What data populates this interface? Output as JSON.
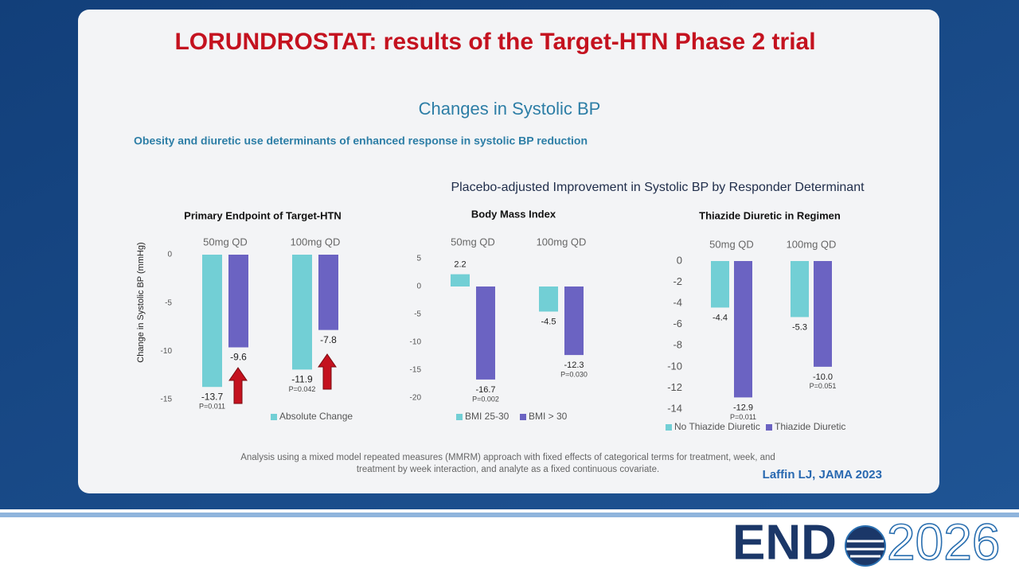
{
  "slide": {
    "title": "LORUNDROSTAT: results of the Target-HTN Phase 2 trial",
    "heading": "Changes in Systolic BP",
    "subtitle": "Obesity and diuretic use determinants of enhanced response in systolic BP reduction",
    "group_heading": "Placebo-adjusted Improvement in Systolic BP by Responder Determinant",
    "footnote": [
      "Analysis using a mixed model repeated measures (MMRM) approach with fixed effects of categorical terms for treatment, week, and",
      "treatment by week interaction, and analyte as a fixed continuous covariate."
    ],
    "citation": "Laffin LJ, JAMA 2023",
    "logo": {
      "brand": "END",
      "year": "2026"
    }
  },
  "chart_data": [
    {
      "type": "bar",
      "title": "Primary Endpoint of Target-HTN",
      "y_label": "Change in Systolic BP (mmHg)",
      "categories": [
        "50mg QD",
        "100mg QD"
      ],
      "series": [
        {
          "name": "Absolute Change",
          "color": "#72cfd5",
          "values": [
            -13.7,
            -11.9
          ],
          "p_values": [
            "P=0.011",
            "P=0.042"
          ]
        },
        {
          "color": "#6b63c2",
          "values": [
            -9.6,
            -7.8
          ]
        }
      ],
      "ylim": [
        -15,
        0
      ],
      "yticks": [
        0,
        -5,
        -10,
        -15
      ]
    },
    {
      "type": "bar",
      "title": "Body Mass Index",
      "categories": [
        "50mg QD",
        "100mg QD"
      ],
      "series": [
        {
          "name": "BMI 25-30",
          "color": "#72cfd5",
          "values": [
            2.2,
            -4.5
          ]
        },
        {
          "name": "BMI > 30",
          "color": "#6b63c2",
          "values": [
            -16.7,
            -12.3
          ],
          "p_values": [
            "P=0.002",
            "P=0.030"
          ]
        }
      ],
      "ylim": [
        -20,
        5
      ],
      "yticks": [
        5,
        0,
        -5,
        -10,
        -15,
        -20
      ]
    },
    {
      "type": "bar",
      "title": "Thiazide Diuretic in Regimen",
      "categories": [
        "50mg QD",
        "100mg QD"
      ],
      "series": [
        {
          "name": "No Thiazide Diuretic",
          "color": "#72cfd5",
          "values": [
            -4.4,
            -5.3
          ]
        },
        {
          "name": "Thiazide Diuretic",
          "color": "#6b63c2",
          "values": [
            -12.9,
            -10
          ],
          "value_labels": [
            "-12.9",
            "-10.0"
          ],
          "p_values": [
            "P=0.011",
            "P=0.051"
          ]
        }
      ],
      "ylim": [
        -14,
        0
      ],
      "yticks": [
        0,
        -2,
        -4,
        -6,
        -8,
        -10,
        -12,
        -14
      ]
    }
  ]
}
